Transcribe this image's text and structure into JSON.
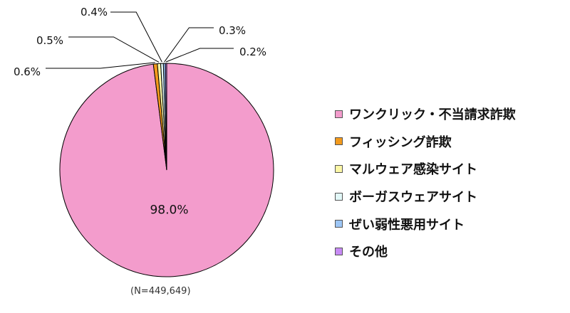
{
  "chart_data": {
    "type": "pie",
    "categories": [
      "ワンクリック・不当請求詐欺",
      "フィッシング詐欺",
      "マルウェア感染サイト",
      "ボーガスウェアサイト",
      "ぜい弱性悪用サイト",
      "その他"
    ],
    "values": [
      98.0,
      0.6,
      0.5,
      0.4,
      0.3,
      0.2
    ],
    "data_labels": [
      "98.0%",
      "0.6%",
      "0.5%",
      "0.4%",
      "0.3%",
      "0.2%"
    ],
    "colors": [
      "#f39ccc",
      "#f39a1c",
      "#fcf7a6",
      "#e2f8f8",
      "#9dc6f6",
      "#c78af5"
    ],
    "legend_position": "right",
    "note": "(N=449,649)"
  }
}
